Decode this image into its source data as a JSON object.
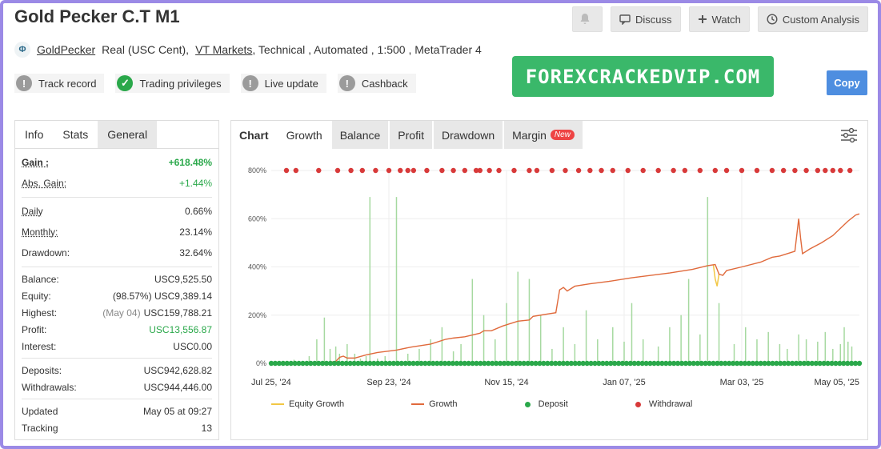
{
  "header": {
    "title": "Gold Pecker C.T M1",
    "actions": {
      "discuss": "Discuss",
      "watch": "Watch",
      "custom": "Custom Analysis"
    }
  },
  "meta": {
    "owner": "GoldPecker",
    "account_type": "Real (USC Cent),",
    "broker": "VT Markets",
    "rest": ", Technical , Automated , 1:500 , MetaTrader 4"
  },
  "badges": [
    {
      "label": "Track record",
      "status": "grey"
    },
    {
      "label": "Trading privileges",
      "status": "green"
    },
    {
      "label": "Live update",
      "status": "grey"
    },
    {
      "label": "Cashback",
      "status": "grey"
    }
  ],
  "watermark": "FOREXCRACKEDVIP.COM",
  "copy_label": "Copy",
  "stats_tabs": [
    "Info",
    "Stats",
    "General"
  ],
  "stats": {
    "gain_label": "Gain :",
    "gain": "+618.48%",
    "abs_gain_label": "Abs. Gain:",
    "abs_gain": "+1.44%",
    "daily_label": "Daily",
    "daily": "0.66%",
    "monthly_label": "Monthly:",
    "monthly": "23.14%",
    "drawdown_label": "Drawdown:",
    "drawdown": "32.64%",
    "balance_label": "Balance:",
    "balance": "USC9,525.50",
    "equity_label": "Equity:",
    "equity_pct": "(98.57%)",
    "equity": "USC9,389.14",
    "highest_label": "Highest:",
    "highest_date": "(May 04)",
    "highest": "USC159,788.21",
    "profit_label": "Profit:",
    "profit": "USC13,556.87",
    "interest_label": "Interest:",
    "interest": "USC0.00",
    "deposits_label": "Deposits:",
    "deposits": "USC942,628.82",
    "withdrawals_label": "Withdrawals:",
    "withdrawals": "USC944,446.00",
    "updated_label": "Updated",
    "updated": "May 05 at 09:27",
    "tracking_label": "Tracking",
    "tracking": "13"
  },
  "chart_tabs": {
    "chart": "Chart",
    "growth": "Growth",
    "balance": "Balance",
    "profit": "Profit",
    "drawdown": "Drawdown",
    "margin": "Margin",
    "new_badge": "New"
  },
  "chart_data": {
    "type": "line",
    "x_ticks": [
      "Jul 25, '24",
      "Sep 23, '24",
      "Nov 15, '24",
      "Jan 07, '25",
      "Mar 03, '25",
      "May 05, '25"
    ],
    "y_ticks": [
      "0%",
      "200%",
      "400%",
      "600%",
      "800%"
    ],
    "ylim": [
      0,
      800
    ],
    "x_range_days": [
      0,
      284
    ],
    "legend": [
      "Equity Growth",
      "Growth",
      "Deposit",
      "Withdrawal"
    ],
    "colors": {
      "equity": "#f2c744",
      "growth": "#e06a3c",
      "deposit": "#2aa84a",
      "withdrawal": "#d83a3a",
      "bars": "#a6d9a0"
    },
    "growth": [
      [
        0,
        0
      ],
      [
        10,
        2
      ],
      [
        22,
        3
      ],
      [
        30,
        4
      ],
      [
        34,
        8
      ],
      [
        36,
        25
      ],
      [
        38,
        30
      ],
      [
        40,
        22
      ],
      [
        44,
        22
      ],
      [
        50,
        35
      ],
      [
        56,
        45
      ],
      [
        66,
        55
      ],
      [
        74,
        68
      ],
      [
        84,
        80
      ],
      [
        92,
        100
      ],
      [
        96,
        105
      ],
      [
        102,
        110
      ],
      [
        110,
        125
      ],
      [
        112,
        135
      ],
      [
        116,
        135
      ],
      [
        122,
        155
      ],
      [
        126,
        165
      ],
      [
        130,
        175
      ],
      [
        136,
        180
      ],
      [
        138,
        195
      ],
      [
        142,
        200
      ],
      [
        146,
        205
      ],
      [
        150,
        210
      ],
      [
        152,
        305
      ],
      [
        154,
        315
      ],
      [
        156,
        300
      ],
      [
        160,
        320
      ],
      [
        168,
        330
      ],
      [
        178,
        340
      ],
      [
        190,
        355
      ],
      [
        200,
        365
      ],
      [
        210,
        375
      ],
      [
        222,
        390
      ],
      [
        230,
        405
      ],
      [
        234,
        410
      ],
      [
        236,
        370
      ],
      [
        238,
        365
      ],
      [
        240,
        385
      ],
      [
        248,
        400
      ],
      [
        258,
        420
      ],
      [
        264,
        440
      ],
      [
        268,
        445
      ],
      [
        272,
        455
      ],
      [
        276,
        465
      ],
      [
        278,
        600
      ],
      [
        279,
        520
      ],
      [
        280,
        455
      ],
      [
        284,
        475
      ],
      [
        290,
        500
      ],
      [
        296,
        530
      ],
      [
        300,
        560
      ],
      [
        304,
        590
      ],
      [
        308,
        615
      ],
      [
        310,
        620
      ]
    ],
    "equity_dip": [
      [
        233,
        410
      ],
      [
        234,
        350
      ],
      [
        235,
        320
      ],
      [
        236,
        370
      ]
    ],
    "bars": [
      [
        12,
        15
      ],
      [
        20,
        30
      ],
      [
        24,
        100
      ],
      [
        28,
        190
      ],
      [
        31,
        60
      ],
      [
        34,
        70
      ],
      [
        36,
        40
      ],
      [
        40,
        80
      ],
      [
        44,
        40
      ],
      [
        47,
        20
      ],
      [
        50,
        30
      ],
      [
        52,
        690
      ],
      [
        56,
        20
      ],
      [
        60,
        30
      ],
      [
        66,
        690
      ],
      [
        72,
        40
      ],
      [
        78,
        60
      ],
      [
        84,
        100
      ],
      [
        90,
        150
      ],
      [
        96,
        50
      ],
      [
        100,
        80
      ],
      [
        106,
        350
      ],
      [
        112,
        200
      ],
      [
        118,
        100
      ],
      [
        124,
        250
      ],
      [
        130,
        380
      ],
      [
        136,
        350
      ],
      [
        142,
        200
      ],
      [
        148,
        60
      ],
      [
        154,
        150
      ],
      [
        160,
        80
      ],
      [
        166,
        220
      ],
      [
        172,
        100
      ],
      [
        180,
        150
      ],
      [
        186,
        90
      ],
      [
        190,
        250
      ],
      [
        196,
        100
      ],
      [
        204,
        70
      ],
      [
        210,
        150
      ],
      [
        216,
        200
      ],
      [
        220,
        350
      ],
      [
        226,
        120
      ],
      [
        230,
        690
      ],
      [
        236,
        250
      ],
      [
        244,
        80
      ],
      [
        250,
        150
      ],
      [
        256,
        100
      ],
      [
        262,
        130
      ],
      [
        268,
        80
      ],
      [
        272,
        60
      ],
      [
        278,
        120
      ],
      [
        282,
        100
      ],
      [
        288,
        90
      ],
      [
        292,
        130
      ],
      [
        296,
        60
      ],
      [
        300,
        80
      ],
      [
        302,
        150
      ],
      [
        304,
        90
      ],
      [
        306,
        70
      ]
    ],
    "withdrawals": [
      8,
      13,
      25,
      35,
      42,
      48,
      55,
      62,
      68,
      72,
      75,
      82,
      90,
      96,
      102,
      108,
      110,
      115,
      120,
      128,
      136,
      140,
      148,
      155,
      162,
      168,
      174,
      180,
      188,
      196,
      204,
      212,
      218,
      226,
      234,
      240,
      248,
      256,
      264,
      270,
      276,
      282,
      288,
      292,
      296,
      300,
      305
    ],
    "deposits_count": 150
  }
}
